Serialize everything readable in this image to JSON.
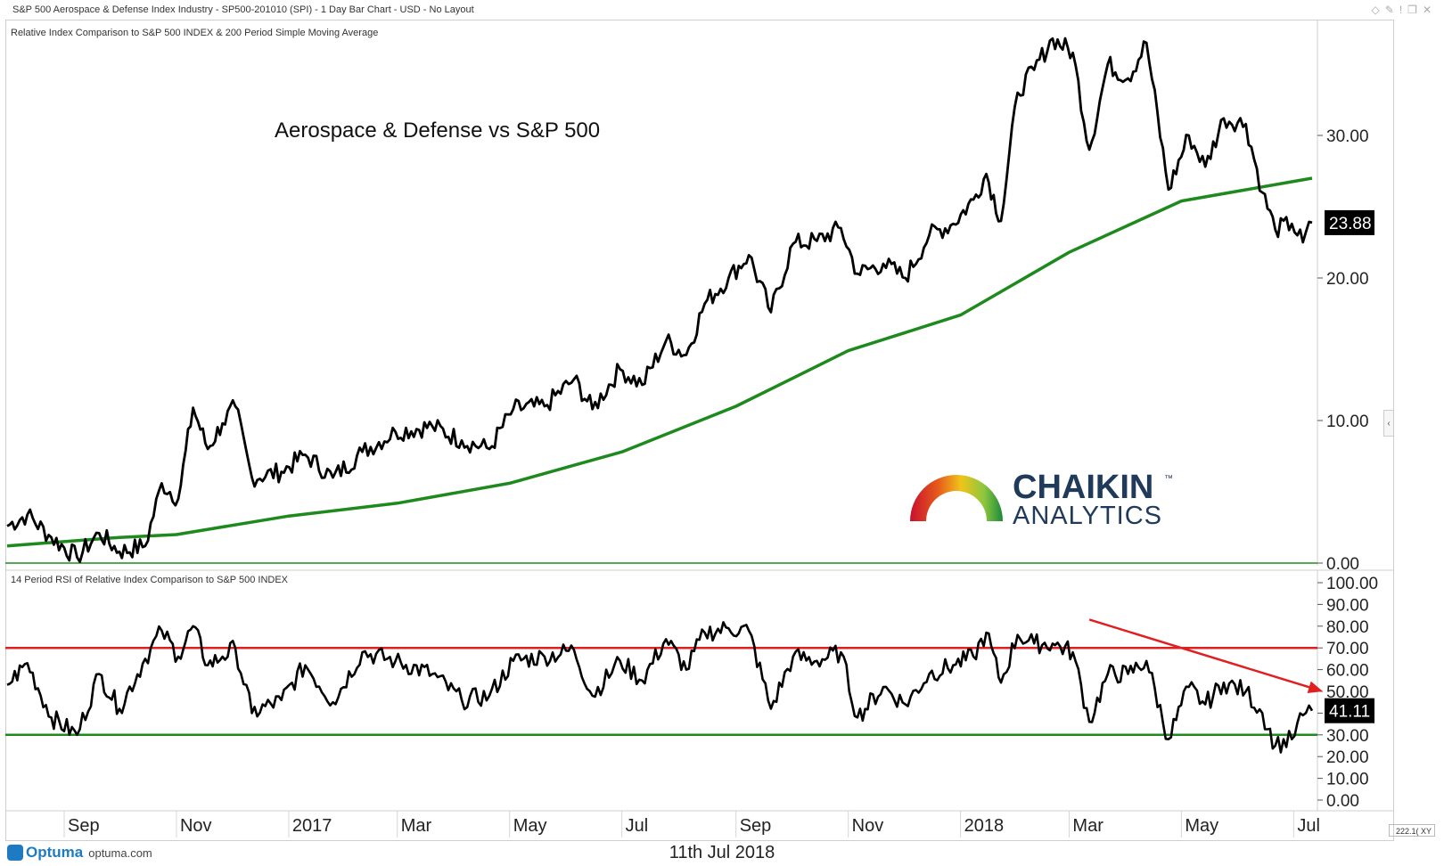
{
  "header": {
    "title": "S&P 500 Aerospace & Defense Index Industry - SP500-201010 (SPI) - 1 Day Bar Chart - USD - No Layout",
    "icons": [
      "diamond-icon",
      "pin-icon",
      "minimize-icon",
      "restore-icon",
      "close-icon"
    ]
  },
  "upper_panel": {
    "caption": "Relative Index Comparison to S&P 500 INDEX & 200 Period Simple Moving Average",
    "annotation": "Aerospace & Defense vs S&P 500",
    "last_value_label": "23.88"
  },
  "lower_panel": {
    "caption": "14 Period RSI of Relative Index Comparison to S&P 500 INDEX",
    "last_value_label": "41.11"
  },
  "logo": {
    "name": "CHAIKIN",
    "trademark": "™",
    "sub": "ANALYTICS"
  },
  "footer": {
    "date": "11th Jul 2018",
    "brand": "Optuma",
    "site": "optuma.com",
    "zoom": "222.1( XY"
  },
  "colors": {
    "price": "#000000",
    "sma": "#1e8a1e",
    "rsi_upper": "#e02020",
    "rsi_lower": "#1e8a1e",
    "trend_arrow": "#e02020",
    "price_badge_bg": "#000000"
  },
  "chart_data": [
    {
      "type": "line",
      "panel": "upper",
      "y_ticks": [
        "0.00",
        "10.00",
        "20.00",
        "30.00"
      ],
      "ylim": [
        0,
        37
      ],
      "x_labels": [
        "Sep",
        "Nov",
        "2017",
        "Mar",
        "May",
        "Jul",
        "Sep",
        "Nov",
        "2018",
        "Mar",
        "May",
        "Jul"
      ],
      "x_label_dates": [
        "2016-09",
        "2016-11",
        "2017-01",
        "2017-03",
        "2017-05",
        "2017-07",
        "2017-09",
        "2017-11",
        "2018-01",
        "2018-03",
        "2018-05",
        "2018-07"
      ],
      "x_range": [
        "2016-08-01",
        "2018-07-11"
      ],
      "series": [
        {
          "role": "relative-index",
          "points": [
            [
              "2016-08-01",
              2.6
            ],
            [
              "2016-08-12",
              3.4
            ],
            [
              "2016-08-25",
              1.8
            ],
            [
              "2016-09-08",
              0.4
            ],
            [
              "2016-09-20",
              2.1
            ],
            [
              "2016-10-01",
              0.8
            ],
            [
              "2016-10-15",
              1.2
            ],
            [
              "2016-10-24",
              5.6
            ],
            [
              "2016-11-02",
              4.5
            ],
            [
              "2016-11-10",
              10.9
            ],
            [
              "2016-11-18",
              8.0
            ],
            [
              "2016-11-26",
              9.8
            ],
            [
              "2016-12-03",
              11.0
            ],
            [
              "2016-12-12",
              6.0
            ],
            [
              "2016-12-28",
              6.4
            ],
            [
              "2017-01-10",
              7.6
            ],
            [
              "2017-01-25",
              6.0
            ],
            [
              "2017-02-10",
              7.8
            ],
            [
              "2017-02-28",
              9.2
            ],
            [
              "2017-03-20",
              9.6
            ],
            [
              "2017-04-05",
              8.6
            ],
            [
              "2017-04-20",
              8.0
            ],
            [
              "2017-05-03",
              10.8
            ],
            [
              "2017-05-20",
              11.0
            ],
            [
              "2017-06-05",
              12.9
            ],
            [
              "2017-06-15",
              10.8
            ],
            [
              "2017-06-30",
              13.6
            ],
            [
              "2017-07-12",
              12.5
            ],
            [
              "2017-07-25",
              15.6
            ],
            [
              "2017-08-05",
              14.6
            ],
            [
              "2017-08-15",
              18.2
            ],
            [
              "2017-08-28",
              20.0
            ],
            [
              "2017-09-08",
              21.6
            ],
            [
              "2017-09-20",
              17.6
            ],
            [
              "2017-10-02",
              22.4
            ],
            [
              "2017-10-15",
              22.6
            ],
            [
              "2017-10-28",
              23.5
            ],
            [
              "2017-11-06",
              20.3
            ],
            [
              "2017-11-20",
              21.0
            ],
            [
              "2017-12-02",
              20.0
            ],
            [
              "2017-12-15",
              23.0
            ],
            [
              "2017-12-28",
              23.8
            ],
            [
              "2018-01-08",
              25.5
            ],
            [
              "2018-01-15",
              27.3
            ],
            [
              "2018-01-23",
              24.0
            ],
            [
              "2018-02-01",
              33.0
            ],
            [
              "2018-02-10",
              34.6
            ],
            [
              "2018-02-20",
              36.8
            ],
            [
              "2018-03-03",
              35.8
            ],
            [
              "2018-03-12",
              29.0
            ],
            [
              "2018-03-22",
              35.0
            ],
            [
              "2018-04-02",
              34.0
            ],
            [
              "2018-04-12",
              36.5
            ],
            [
              "2018-04-24",
              26.2
            ],
            [
              "2018-05-05",
              30.0
            ],
            [
              "2018-05-14",
              27.8
            ],
            [
              "2018-05-24",
              31.2
            ],
            [
              "2018-06-05",
              30.8
            ],
            [
              "2018-06-14",
              26.0
            ],
            [
              "2018-06-21",
              23.4
            ],
            [
              "2018-06-30",
              23.8
            ],
            [
              "2018-07-06",
              22.5
            ],
            [
              "2018-07-11",
              23.88
            ]
          ]
        },
        {
          "role": "200-period-sma",
          "points": [
            [
              "2016-08-01",
              1.2
            ],
            [
              "2016-10-01",
              1.8
            ],
            [
              "2016-11-01",
              2.0
            ],
            [
              "2017-01-01",
              3.3
            ],
            [
              "2017-03-01",
              4.2
            ],
            [
              "2017-05-01",
              5.6
            ],
            [
              "2017-07-01",
              7.8
            ],
            [
              "2017-09-01",
              11.0
            ],
            [
              "2017-11-01",
              14.9
            ],
            [
              "2018-01-01",
              17.4
            ],
            [
              "2018-03-01",
              21.8
            ],
            [
              "2018-05-01",
              25.4
            ],
            [
              "2018-07-11",
              27.0
            ]
          ]
        }
      ]
    },
    {
      "type": "line",
      "panel": "lower",
      "y_ticks": [
        "0.00",
        "10.00",
        "20.00",
        "30.00",
        "40.00",
        "50.00",
        "60.00",
        "70.00",
        "80.00",
        "90.00",
        "100.00"
      ],
      "ylim": [
        0,
        100
      ],
      "reference_lines": [
        70,
        30
      ],
      "series": [
        {
          "role": "rsi-14",
          "points": [
            [
              "2016-08-01",
              53
            ],
            [
              "2016-08-12",
              63
            ],
            [
              "2016-08-25",
              38
            ],
            [
              "2016-09-08",
              30
            ],
            [
              "2016-09-20",
              58
            ],
            [
              "2016-10-01",
              42
            ],
            [
              "2016-10-15",
              65
            ],
            [
              "2016-10-24",
              78
            ],
            [
              "2016-11-02",
              66
            ],
            [
              "2016-11-10",
              80
            ],
            [
              "2016-11-18",
              62
            ],
            [
              "2016-11-26",
              66
            ],
            [
              "2016-12-03",
              70
            ],
            [
              "2016-12-12",
              40
            ],
            [
              "2016-12-28",
              46
            ],
            [
              "2017-01-10",
              62
            ],
            [
              "2017-01-25",
              45
            ],
            [
              "2017-02-10",
              68
            ],
            [
              "2017-02-28",
              64
            ],
            [
              "2017-03-20",
              58
            ],
            [
              "2017-04-05",
              46
            ],
            [
              "2017-04-20",
              48
            ],
            [
              "2017-05-03",
              64
            ],
            [
              "2017-05-20",
              66
            ],
            [
              "2017-06-05",
              69
            ],
            [
              "2017-06-15",
              48
            ],
            [
              "2017-06-30",
              64
            ],
            [
              "2017-07-12",
              55
            ],
            [
              "2017-07-25",
              74
            ],
            [
              "2017-08-05",
              60
            ],
            [
              "2017-08-15",
              77
            ],
            [
              "2017-08-28",
              79
            ],
            [
              "2017-09-08",
              78
            ],
            [
              "2017-09-20",
              42
            ],
            [
              "2017-10-02",
              66
            ],
            [
              "2017-10-15",
              64
            ],
            [
              "2017-10-28",
              68
            ],
            [
              "2017-11-06",
              38
            ],
            [
              "2017-11-20",
              52
            ],
            [
              "2017-12-02",
              44
            ],
            [
              "2017-12-15",
              58
            ],
            [
              "2017-12-28",
              62
            ],
            [
              "2018-01-08",
              66
            ],
            [
              "2018-01-15",
              77
            ],
            [
              "2018-01-23",
              54
            ],
            [
              "2018-02-01",
              76
            ],
            [
              "2018-02-10",
              72
            ],
            [
              "2018-02-20",
              72
            ],
            [
              "2018-03-03",
              68
            ],
            [
              "2018-03-12",
              36
            ],
            [
              "2018-03-22",
              58
            ],
            [
              "2018-04-02",
              58
            ],
            [
              "2018-04-12",
              64
            ],
            [
              "2018-04-24",
              28
            ],
            [
              "2018-05-05",
              52
            ],
            [
              "2018-05-14",
              44
            ],
            [
              "2018-05-24",
              54
            ],
            [
              "2018-06-05",
              50
            ],
            [
              "2018-06-14",
              40
            ],
            [
              "2018-06-21",
              25
            ],
            [
              "2018-06-30",
              28
            ],
            [
              "2018-07-06",
              39
            ],
            [
              "2018-07-11",
              41.11
            ]
          ]
        }
      ],
      "trend_arrow": {
        "from": [
          "2018-03-12",
          83
        ],
        "to": [
          "2018-07-11",
          50
        ]
      }
    }
  ]
}
